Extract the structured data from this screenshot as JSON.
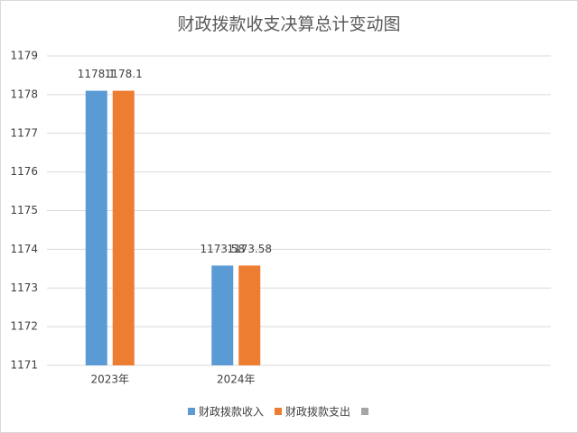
{
  "chart_data": {
    "type": "bar",
    "title": "财政拨款收支决算总计变动图",
    "categories": [
      "2023年",
      "2024年",
      null,
      null
    ],
    "series": [
      {
        "name": "财政拨款收入",
        "color": "#5b9bd5",
        "values": [
          1178.1,
          1173.58,
          null,
          null
        ],
        "value_labels": [
          "1178.1",
          "1173.58",
          null,
          null
        ]
      },
      {
        "name": "财政拨款支出",
        "color": "#ed7d31",
        "values": [
          1178.1,
          1173.58,
          null,
          null
        ],
        "value_labels": [
          "1178.1",
          "1173.58",
          null,
          null
        ]
      },
      {
        "color": "#a5a5a5",
        "values": [
          null,
          null,
          null,
          null
        ]
      }
    ],
    "ylim": [
      1171,
      1179
    ],
    "yticks": [
      1171,
      1172,
      1173,
      1174,
      1175,
      1176,
      1177,
      1178,
      1179
    ],
    "grid": true,
    "legend": "bottom"
  }
}
